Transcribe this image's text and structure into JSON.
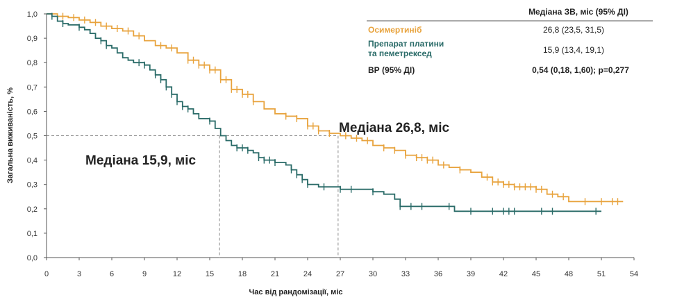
{
  "chart_data": {
    "type": "line",
    "xlabel": "Час від рандомізації, міс",
    "ylabel": "Загальна виживаність, %",
    "xlim": [
      0,
      54
    ],
    "ylim": [
      0,
      1
    ],
    "x_ticks": [
      "0",
      "3",
      "6",
      "9",
      "12",
      "15",
      "18",
      "21",
      "24",
      "27",
      "30",
      "33",
      "36",
      "39",
      "42",
      "45",
      "48",
      "51",
      "54"
    ],
    "y_ticks": [
      "0,0",
      "0,1",
      "0,2",
      "0,3",
      "0,4",
      "0,5",
      "0,6",
      "0,7",
      "0,8",
      "0,9",
      "1,0"
    ],
    "grid": false,
    "series": [
      {
        "name": "Осимертиніб",
        "color": "#E8A33D",
        "points": [
          [
            0,
            1.0
          ],
          [
            0.5,
            1.0
          ],
          [
            1,
            0.99
          ],
          [
            2,
            0.985
          ],
          [
            3,
            0.975
          ],
          [
            4,
            0.965
          ],
          [
            5,
            0.95
          ],
          [
            6,
            0.94
          ],
          [
            7,
            0.93
          ],
          [
            8,
            0.91
          ],
          [
            9,
            0.89
          ],
          [
            10,
            0.87
          ],
          [
            11,
            0.86
          ],
          [
            12,
            0.84
          ],
          [
            13,
            0.81
          ],
          [
            14,
            0.79
          ],
          [
            15,
            0.77
          ],
          [
            16,
            0.73
          ],
          [
            17,
            0.69
          ],
          [
            18,
            0.67
          ],
          [
            19,
            0.64
          ],
          [
            20,
            0.61
          ],
          [
            21,
            0.59
          ],
          [
            22,
            0.58
          ],
          [
            23,
            0.57
          ],
          [
            24,
            0.54
          ],
          [
            25,
            0.52
          ],
          [
            26,
            0.51
          ],
          [
            27,
            0.5
          ],
          [
            28,
            0.49
          ],
          [
            29,
            0.48
          ],
          [
            30,
            0.46
          ],
          [
            31,
            0.45
          ],
          [
            32,
            0.44
          ],
          [
            33,
            0.42
          ],
          [
            34,
            0.41
          ],
          [
            35,
            0.4
          ],
          [
            36,
            0.38
          ],
          [
            37,
            0.37
          ],
          [
            38,
            0.36
          ],
          [
            39,
            0.35
          ],
          [
            40,
            0.33
          ],
          [
            41,
            0.31
          ],
          [
            42,
            0.3
          ],
          [
            43,
            0.29
          ],
          [
            44,
            0.29
          ],
          [
            45,
            0.28
          ],
          [
            46,
            0.26
          ],
          [
            47,
            0.25
          ],
          [
            48,
            0.23
          ],
          [
            51,
            0.23
          ],
          [
            53,
            0.23
          ]
        ],
        "censor_x": [
          1.5,
          2.5,
          3.5,
          4.5,
          5.5,
          6.5,
          7.5,
          8.5,
          10.5,
          11.5,
          13,
          13.5,
          14,
          14.5,
          15,
          15.5,
          16,
          16.5,
          17,
          17.5,
          18,
          18.5,
          19,
          22,
          23,
          24,
          24.5,
          25,
          26,
          27.5,
          28.5,
          29.5,
          31,
          32,
          33,
          34,
          34.5,
          35,
          35.5,
          36.5,
          38,
          40.5,
          41,
          41.5,
          42,
          42.5,
          43,
          43.5,
          44,
          44.5,
          45,
          45.5,
          46.5,
          47.5,
          49.5,
          51,
          52,
          52.5
        ]
      },
      {
        "name": "Препарат платини та пеметрексед",
        "color": "#2A6B68",
        "points": [
          [
            0,
            1.0
          ],
          [
            0.5,
            0.99
          ],
          [
            1,
            0.97
          ],
          [
            1.5,
            0.96
          ],
          [
            2,
            0.955
          ],
          [
            3,
            0.945
          ],
          [
            3.5,
            0.935
          ],
          [
            4,
            0.92
          ],
          [
            4.5,
            0.9
          ],
          [
            5,
            0.89
          ],
          [
            5.5,
            0.87
          ],
          [
            6,
            0.86
          ],
          [
            6.5,
            0.84
          ],
          [
            7,
            0.82
          ],
          [
            7.5,
            0.81
          ],
          [
            8,
            0.8
          ],
          [
            9,
            0.79
          ],
          [
            9.5,
            0.77
          ],
          [
            10,
            0.75
          ],
          [
            10.5,
            0.73
          ],
          [
            11,
            0.7
          ],
          [
            11.5,
            0.67
          ],
          [
            12,
            0.64
          ],
          [
            12.5,
            0.62
          ],
          [
            13,
            0.61
          ],
          [
            13.5,
            0.59
          ],
          [
            14,
            0.57
          ],
          [
            15,
            0.56
          ],
          [
            15.5,
            0.53
          ],
          [
            16,
            0.5
          ],
          [
            16.5,
            0.48
          ],
          [
            17,
            0.46
          ],
          [
            17.5,
            0.45
          ],
          [
            18.5,
            0.44
          ],
          [
            19,
            0.43
          ],
          [
            19.5,
            0.41
          ],
          [
            20,
            0.4
          ],
          [
            21,
            0.39
          ],
          [
            22,
            0.38
          ],
          [
            22.5,
            0.36
          ],
          [
            23,
            0.34
          ],
          [
            23.5,
            0.32
          ],
          [
            24,
            0.3
          ],
          [
            25,
            0.29
          ],
          [
            27,
            0.28
          ],
          [
            29,
            0.28
          ],
          [
            30,
            0.27
          ],
          [
            31,
            0.26
          ],
          [
            32,
            0.24
          ],
          [
            32.5,
            0.21
          ],
          [
            37,
            0.21
          ],
          [
            37.5,
            0.19
          ],
          [
            51,
            0.19
          ]
        ],
        "censor_x": [
          0.5,
          1.5,
          3,
          5,
          5.5,
          8.5,
          9,
          10,
          10.5,
          11,
          11.5,
          12,
          12.5,
          13,
          15,
          17.5,
          18,
          18.5,
          19.5,
          20,
          20.5,
          21,
          22.5,
          23,
          23.5,
          24,
          25.5,
          27,
          28,
          30,
          32.5,
          33.5,
          34.5,
          37,
          39,
          41,
          42,
          42.5,
          43,
          45.5,
          46.5,
          50.5
        ]
      }
    ],
    "annotations": [
      {
        "text": "Медіана 26,8, міс",
        "x": 26.8,
        "y": 0.5
      },
      {
        "text": "Медіана 15,9, міс",
        "x": 15.9,
        "y": 0.5
      }
    ],
    "table": {
      "header": "Медіана ЗВ, міс (95% ДІ)",
      "rows": [
        {
          "name": "Осимертиніб",
          "value": "26,8 (23,5, 31,5)",
          "color": "#E8A33D",
          "bold_value": false
        },
        {
          "name_line1": "Препарат платини",
          "name_line2": "та пеметрексед",
          "value": "15,9 (13,4, 19,1)",
          "color": "#2A6B68",
          "bold_value": false
        },
        {
          "name": "ВР (95% ДІ)",
          "value": "0,54 (0,18, 1,60); p=0,277",
          "color": "#222222",
          "bold_value": true
        }
      ]
    }
  }
}
